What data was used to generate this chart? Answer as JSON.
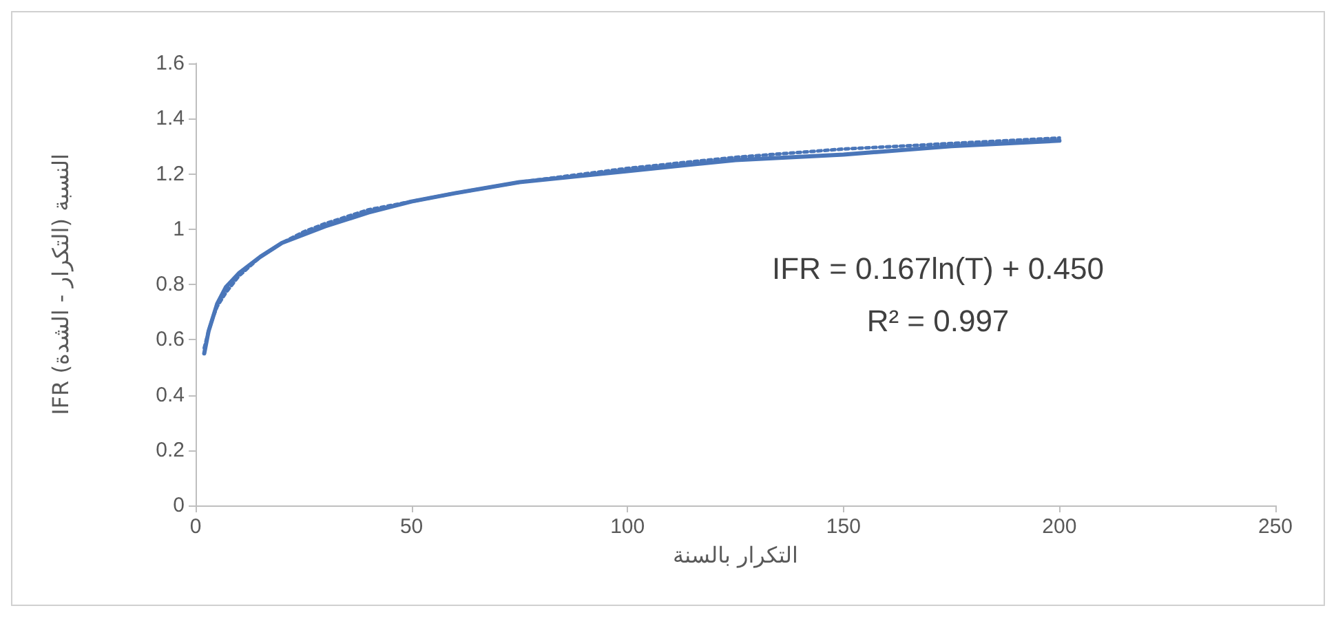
{
  "chart_data": {
    "type": "line",
    "xlabel": "التكرار بالسنة",
    "ylabel": "IFR (التكرار - الشدة) النسبة",
    "series": [
      {
        "color": "#4a76b9",
        "x": [
          2,
          3,
          4,
          5,
          7,
          10,
          15,
          20,
          25,
          30,
          40,
          50,
          60,
          75,
          100,
          125,
          150,
          175,
          200
        ],
        "values": [
          0.55,
          0.63,
          0.68,
          0.73,
          0.79,
          0.84,
          0.9,
          0.95,
          0.98,
          1.01,
          1.06,
          1.1,
          1.13,
          1.17,
          1.21,
          1.25,
          1.27,
          1.3,
          1.32
        ],
        "line_style": "solid"
      },
      {
        "type": "line",
        "color": "#4a76b9",
        "x": [
          2,
          3,
          4,
          5,
          7,
          10,
          15,
          20,
          25,
          30,
          40,
          50,
          60,
          75,
          100,
          125,
          150,
          175,
          200
        ],
        "values": [
          0.57,
          0.63,
          0.68,
          0.72,
          0.77,
          0.83,
          0.9,
          0.95,
          0.99,
          1.02,
          1.07,
          1.1,
          1.13,
          1.17,
          1.22,
          1.26,
          1.29,
          1.31,
          1.33
        ],
        "line_style": "dotted"
      }
    ],
    "xlim": [
      0,
      250
    ],
    "xticks": [
      0,
      50,
      100,
      150,
      200,
      250
    ],
    "ylim": [
      0,
      1.6
    ],
    "yticks": [
      0,
      0.2,
      0.4,
      0.6,
      0.8,
      1,
      1.2,
      1.4,
      1.6
    ],
    "grid": false,
    "marker": "none",
    "annotations": [
      "IFR = 0.167ln(T) + 0.450",
      "R² = 0.997"
    ]
  }
}
